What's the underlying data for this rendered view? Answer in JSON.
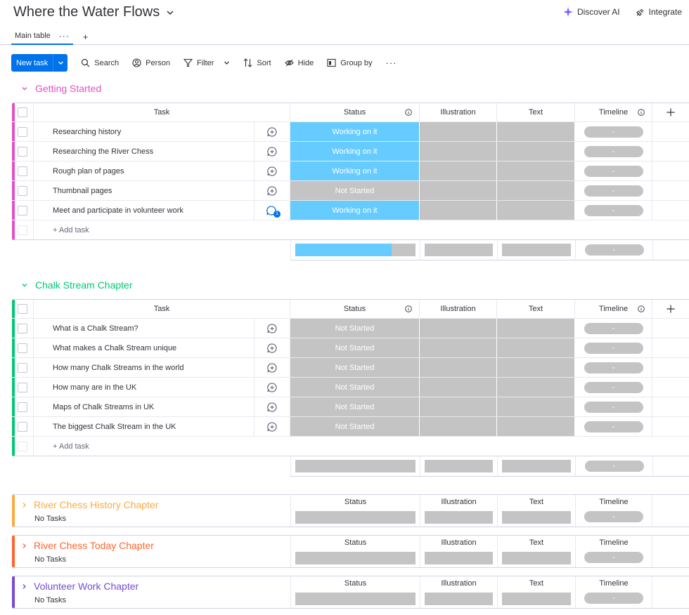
{
  "board": {
    "title": "Where the Water Flows"
  },
  "header_actions": {
    "discover": "Discover AI",
    "integrate": "Integrate"
  },
  "tabs": [
    {
      "label": "Main table"
    }
  ],
  "toolbar": {
    "new_task": "New task",
    "search": "Search",
    "person": "Person",
    "filter": "Filter",
    "sort": "Sort",
    "hide": "Hide",
    "group_by": "Group by"
  },
  "columns": {
    "task": "Task",
    "status": "Status",
    "illustration": "Illustration",
    "text": "Text",
    "timeline": "Timeline"
  },
  "add_task_label": "+ Add task",
  "timeline_empty": "-",
  "no_tasks_label": "No Tasks",
  "colors": {
    "working": "#66ccff",
    "not_started": "#c4c4c4",
    "accent": "#0073ea"
  },
  "groups": [
    {
      "name": "Getting Started",
      "color": "#e2445c",
      "title_color": "#e44fc8",
      "bar_color": "#e44fc8",
      "working_fraction": 0.8,
      "tasks": [
        {
          "name": "Researching history",
          "status": "Working on it",
          "updates": ""
        },
        {
          "name": "Researching the River Chess",
          "status": "Working on it",
          "updates": ""
        },
        {
          "name": "Rough plan of pages",
          "status": "Working on it",
          "updates": ""
        },
        {
          "name": "Thumbnail pages",
          "status": "Not Started",
          "updates": ""
        },
        {
          "name": "Meet and participate in volunteer work",
          "status": "Working on it",
          "updates": "1"
        }
      ]
    },
    {
      "name": "Chalk Stream Chapter",
      "title_color": "#00c875",
      "bar_color": "#00c875",
      "working_fraction": 0,
      "tasks": [
        {
          "name": "What is a Chalk Stream?",
          "status": "Not Started",
          "updates": ""
        },
        {
          "name": "What makes a Chalk Stream unique",
          "status": "Not Started",
          "updates": ""
        },
        {
          "name": "How many Chalk Streams in the world",
          "status": "Not Started",
          "updates": ""
        },
        {
          "name": "How many are in the UK",
          "status": "Not Started",
          "updates": ""
        },
        {
          "name": "Maps of Chalk Streams in UK",
          "status": "Not Started",
          "updates": ""
        },
        {
          "name": "The biggest Chalk Stream in the UK",
          "status": "Not Started",
          "updates": ""
        }
      ]
    }
  ],
  "collapsed_groups": [
    {
      "name": "River Chess History Chapter",
      "color": "#fdab3d"
    },
    {
      "name": "River Chess Today Chapter",
      "color": "#ff642e"
    },
    {
      "name": "Volunteer Work Chapter",
      "color": "#784bd1"
    }
  ]
}
